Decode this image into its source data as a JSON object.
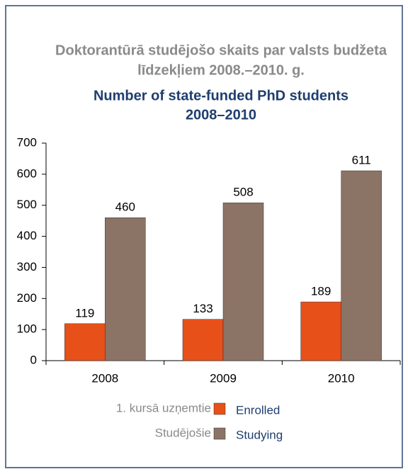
{
  "chart_data": {
    "type": "bar",
    "title": [
      "Doktorantūrā studējošo skaits par valsts budžeta",
      "līdzekļiem 2008.–2010. g."
    ],
    "subtitle": [
      "Number of state-funded PhD students",
      "2008–2010"
    ],
    "categories": [
      "2008",
      "2009",
      "2010"
    ],
    "series": [
      {
        "name": "Enrolled",
        "name_lv": "1. kursā uzņemtie",
        "color": "#e8501a",
        "values": [
          119,
          133,
          189
        ]
      },
      {
        "name": "Studying",
        "name_lv": "Studējošie",
        "color": "#8b7366",
        "values": [
          460,
          508,
          611
        ]
      }
    ],
    "ylim": [
      0,
      700
    ],
    "yticks": [
      0,
      100,
      200,
      300,
      400,
      500,
      600,
      700
    ],
    "grid": false
  }
}
